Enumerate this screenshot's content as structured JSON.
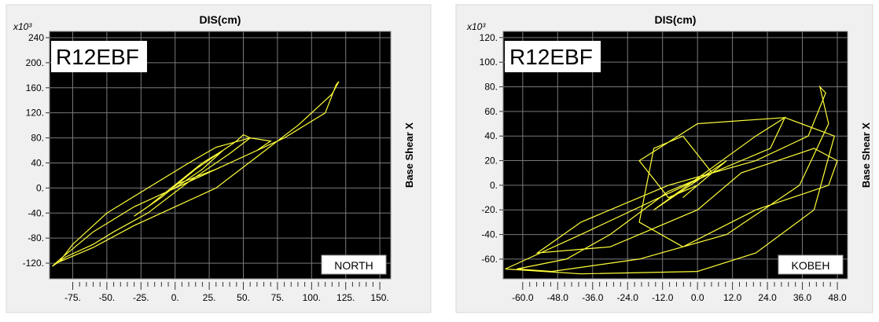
{
  "chart_data": [
    {
      "type": "line",
      "title": "DIS(cm)",
      "y_axis_label": "Base Shear X",
      "y_multiplier": "x10³",
      "label_box": "R12EBF",
      "annotation": "NORTH",
      "color": "#ffff3a",
      "grid": true,
      "xlim": [
        -92,
        158
      ],
      "ylim": [
        -145,
        250
      ],
      "xticks": [
        {
          "value": -75,
          "label": "-75."
        },
        {
          "value": -50,
          "label": "-50."
        },
        {
          "value": -25,
          "label": "-25."
        },
        {
          "value": 0,
          "label": "0."
        },
        {
          "value": 25,
          "label": "25."
        },
        {
          "value": 50,
          "label": "50."
        },
        {
          "value": 75,
          "label": "75."
        },
        {
          "value": 100,
          "label": "100."
        },
        {
          "value": 125,
          "label": "125."
        },
        {
          "value": 150,
          "label": "150."
        }
      ],
      "yticks": [
        240,
        {
          "value": 200,
          "label": "200."
        },
        {
          "value": 160,
          "label": "160."
        },
        {
          "value": 120,
          "label": "120."
        },
        {
          "value": 80,
          "label": "80."
        },
        {
          "value": 40,
          "label": "40."
        },
        {
          "value": 0,
          "label": "0."
        },
        {
          "value": -40,
          "label": "-40."
        },
        {
          "value": -80,
          "label": "-80."
        },
        {
          "value": -120,
          "label": "-120."
        }
      ],
      "x": [
        0,
        10,
        20,
        30,
        35,
        20,
        0,
        -20,
        -30,
        -10,
        15,
        45,
        50,
        55,
        40,
        10,
        -20,
        -45,
        -60,
        -80,
        -90,
        -85,
        -60,
        -30,
        0,
        40,
        80,
        110,
        118,
        120,
        115,
        90,
        60,
        30,
        0,
        -30,
        -60,
        -85,
        -75,
        -50,
        -20,
        10,
        30,
        55,
        70,
        60,
        30,
        0
      ],
      "values": [
        0,
        15,
        30,
        50,
        60,
        40,
        5,
        -30,
        -45,
        -15,
        30,
        75,
        85,
        80,
        55,
        10,
        -40,
        -70,
        -90,
        -110,
        -125,
        -115,
        -70,
        -30,
        0,
        40,
        80,
        120,
        165,
        170,
        150,
        100,
        50,
        0,
        -30,
        -60,
        -95,
        -118,
        -90,
        -40,
        0,
        40,
        65,
        80,
        75,
        60,
        30,
        5
      ]
    },
    {
      "type": "line",
      "title": "DIS(cm)",
      "y_axis_label": "Base Shear X",
      "y_multiplier": "x10³",
      "label_box": "R12EBF",
      "annotation": "KOBEH",
      "color": "#ffff3a",
      "grid": true,
      "xlim": [
        -66.7,
        51.5
      ],
      "ylim": [
        -76,
        125
      ],
      "xticks": [
        {
          "value": -60,
          "label": "-60.0"
        },
        {
          "value": -48,
          "label": "-48.0"
        },
        {
          "value": -36,
          "label": "-36.0"
        },
        {
          "value": -24,
          "label": "-24.0"
        },
        {
          "value": -12,
          "label": "-12.0"
        },
        {
          "value": 0,
          "label": "0.0"
        },
        {
          "value": 12,
          "label": "12.0"
        },
        {
          "value": 24,
          "label": "24.0"
        },
        {
          "value": 36,
          "label": "36.0"
        },
        {
          "value": 48,
          "label": "48.0"
        }
      ],
      "yticks": [
        {
          "value": 120,
          "label": "120."
        },
        {
          "value": 100,
          "label": "100."
        },
        {
          "value": 80,
          "label": "80."
        },
        {
          "value": 60,
          "label": "60."
        },
        {
          "value": 40,
          "label": "40."
        },
        {
          "value": 20,
          "label": "20."
        },
        {
          "value": 0,
          "label": "0."
        },
        {
          "value": -20,
          "label": "-20."
        },
        {
          "value": -40,
          "label": "-40."
        },
        {
          "value": -60,
          "label": "-60."
        }
      ],
      "x": [
        0,
        5,
        -5,
        10,
        -15,
        20,
        30,
        25,
        -10,
        -30,
        -45,
        -62,
        -50,
        -20,
        10,
        35,
        45,
        42,
        44,
        38,
        20,
        -10,
        -40,
        -55,
        -30,
        0,
        15,
        40,
        48,
        45,
        20,
        -5,
        -20,
        -15,
        -5,
        5,
        -40,
        -66,
        -40,
        0,
        20,
        40,
        47,
        30,
        0,
        -20,
        -10,
        0
      ],
      "values": [
        0,
        10,
        -10,
        20,
        -20,
        40,
        55,
        30,
        -5,
        -40,
        -60,
        -68,
        -70,
        -60,
        -40,
        0,
        50,
        80,
        75,
        40,
        20,
        0,
        -30,
        -55,
        -50,
        -20,
        10,
        30,
        20,
        0,
        -20,
        -50,
        -30,
        30,
        40,
        10,
        -40,
        -68,
        -72,
        -70,
        -55,
        -20,
        40,
        55,
        50,
        20,
        -10,
        0
      ]
    }
  ]
}
